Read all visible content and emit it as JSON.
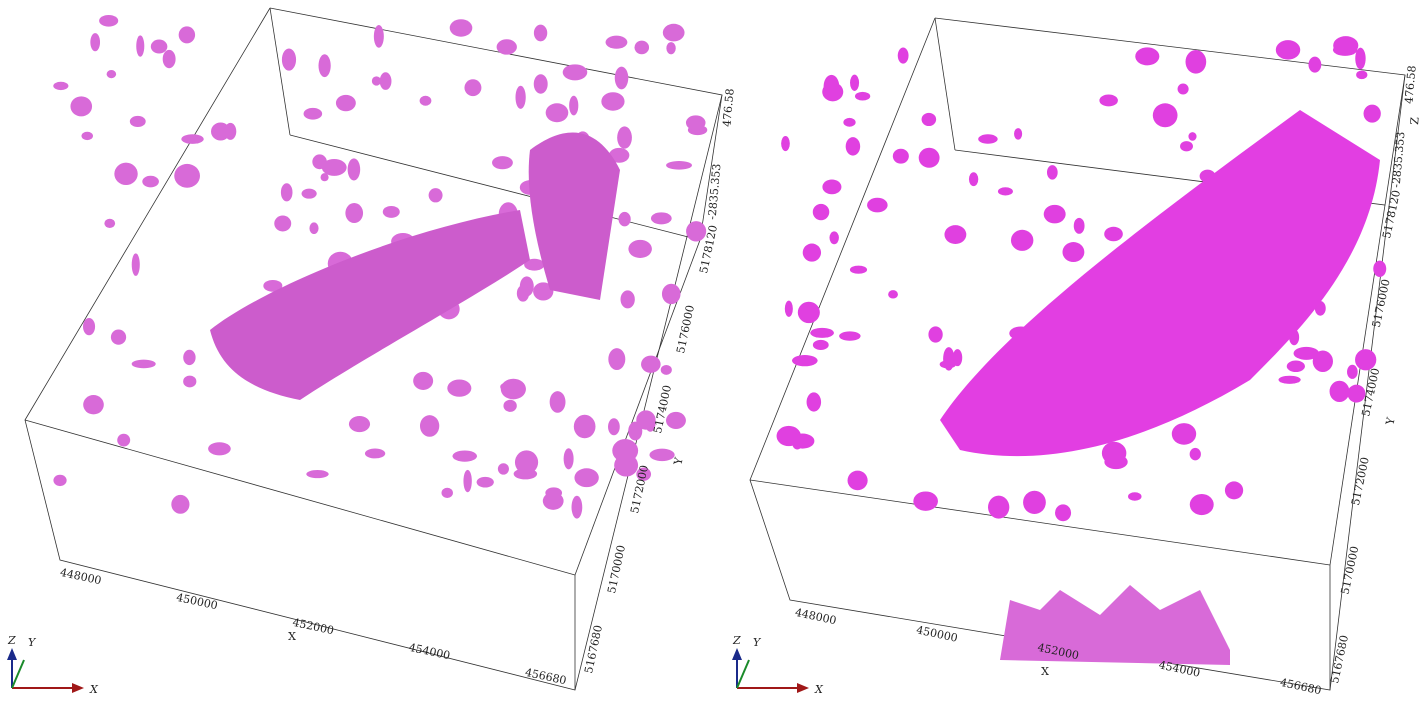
{
  "panels": [
    {
      "x_axis": {
        "label": "X",
        "ticks": [
          "448000",
          "450000",
          "452000",
          "454000",
          "456680"
        ]
      },
      "y_axis": {
        "label": "Y",
        "ticks": [
          "5167680",
          "5170000",
          "5172000",
          "5174000",
          "5176000",
          "5178120"
        ]
      },
      "z_axis": {
        "ticks": [
          "-2835.353",
          "476.58"
        ]
      },
      "triad": {
        "z": "Z",
        "y": "Y",
        "x": "X"
      }
    },
    {
      "x_axis": {
        "label": "X",
        "ticks": [
          "448000",
          "450000",
          "452000",
          "454000",
          "456680"
        ]
      },
      "y_axis": {
        "label": "Y",
        "ticks": [
          "5167680",
          "5170000",
          "5172000",
          "5174000",
          "5176000",
          "5178120"
        ]
      },
      "z_axis": {
        "label": "Z",
        "ticks": [
          "-2835.353",
          "476.58"
        ]
      },
      "triad": {
        "z": "Z",
        "y": "Y",
        "x": "X"
      }
    }
  ]
}
